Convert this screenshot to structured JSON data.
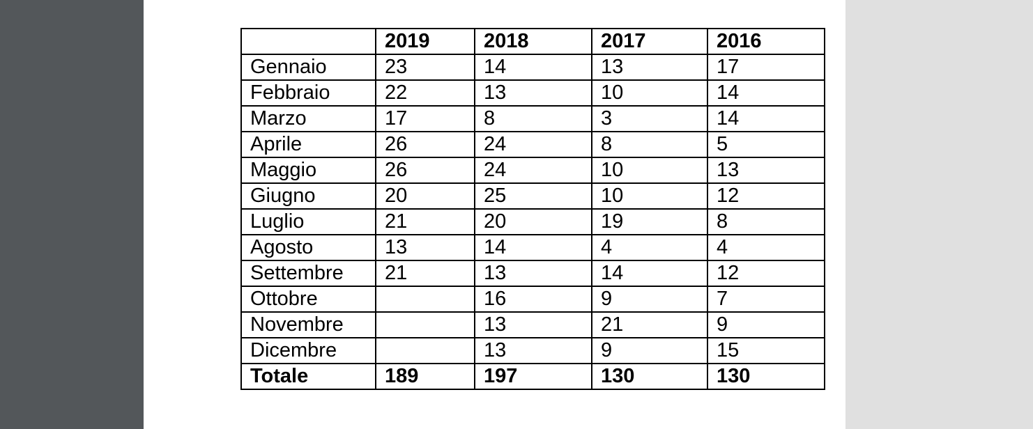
{
  "table": {
    "header": [
      "",
      "2019",
      "2018",
      "2017",
      "2016"
    ],
    "rows": [
      [
        "Gennaio",
        "23",
        "14",
        "13",
        "17"
      ],
      [
        "Febbraio",
        "22",
        "13",
        "10",
        "14"
      ],
      [
        "Marzo",
        "17",
        "8",
        "3",
        "14"
      ],
      [
        "Aprile",
        "26",
        "24",
        "8",
        "5"
      ],
      [
        "Maggio",
        "26",
        "24",
        "10",
        "13"
      ],
      [
        "Giugno",
        "20",
        "25",
        "10",
        "12"
      ],
      [
        "Luglio",
        "21",
        "20",
        "19",
        "8"
      ],
      [
        "Agosto",
        "13",
        "14",
        "4",
        "4"
      ],
      [
        "Settembre",
        "21",
        "13",
        "14",
        "12"
      ],
      [
        "Ottobre",
        "",
        "16",
        "9",
        "7"
      ],
      [
        "Novembre",
        "",
        "13",
        "21",
        "9"
      ],
      [
        "Dicembre",
        "",
        "13",
        "9",
        "15"
      ]
    ],
    "total": [
      "Totale",
      "189",
      "197",
      "130",
      "130"
    ]
  }
}
